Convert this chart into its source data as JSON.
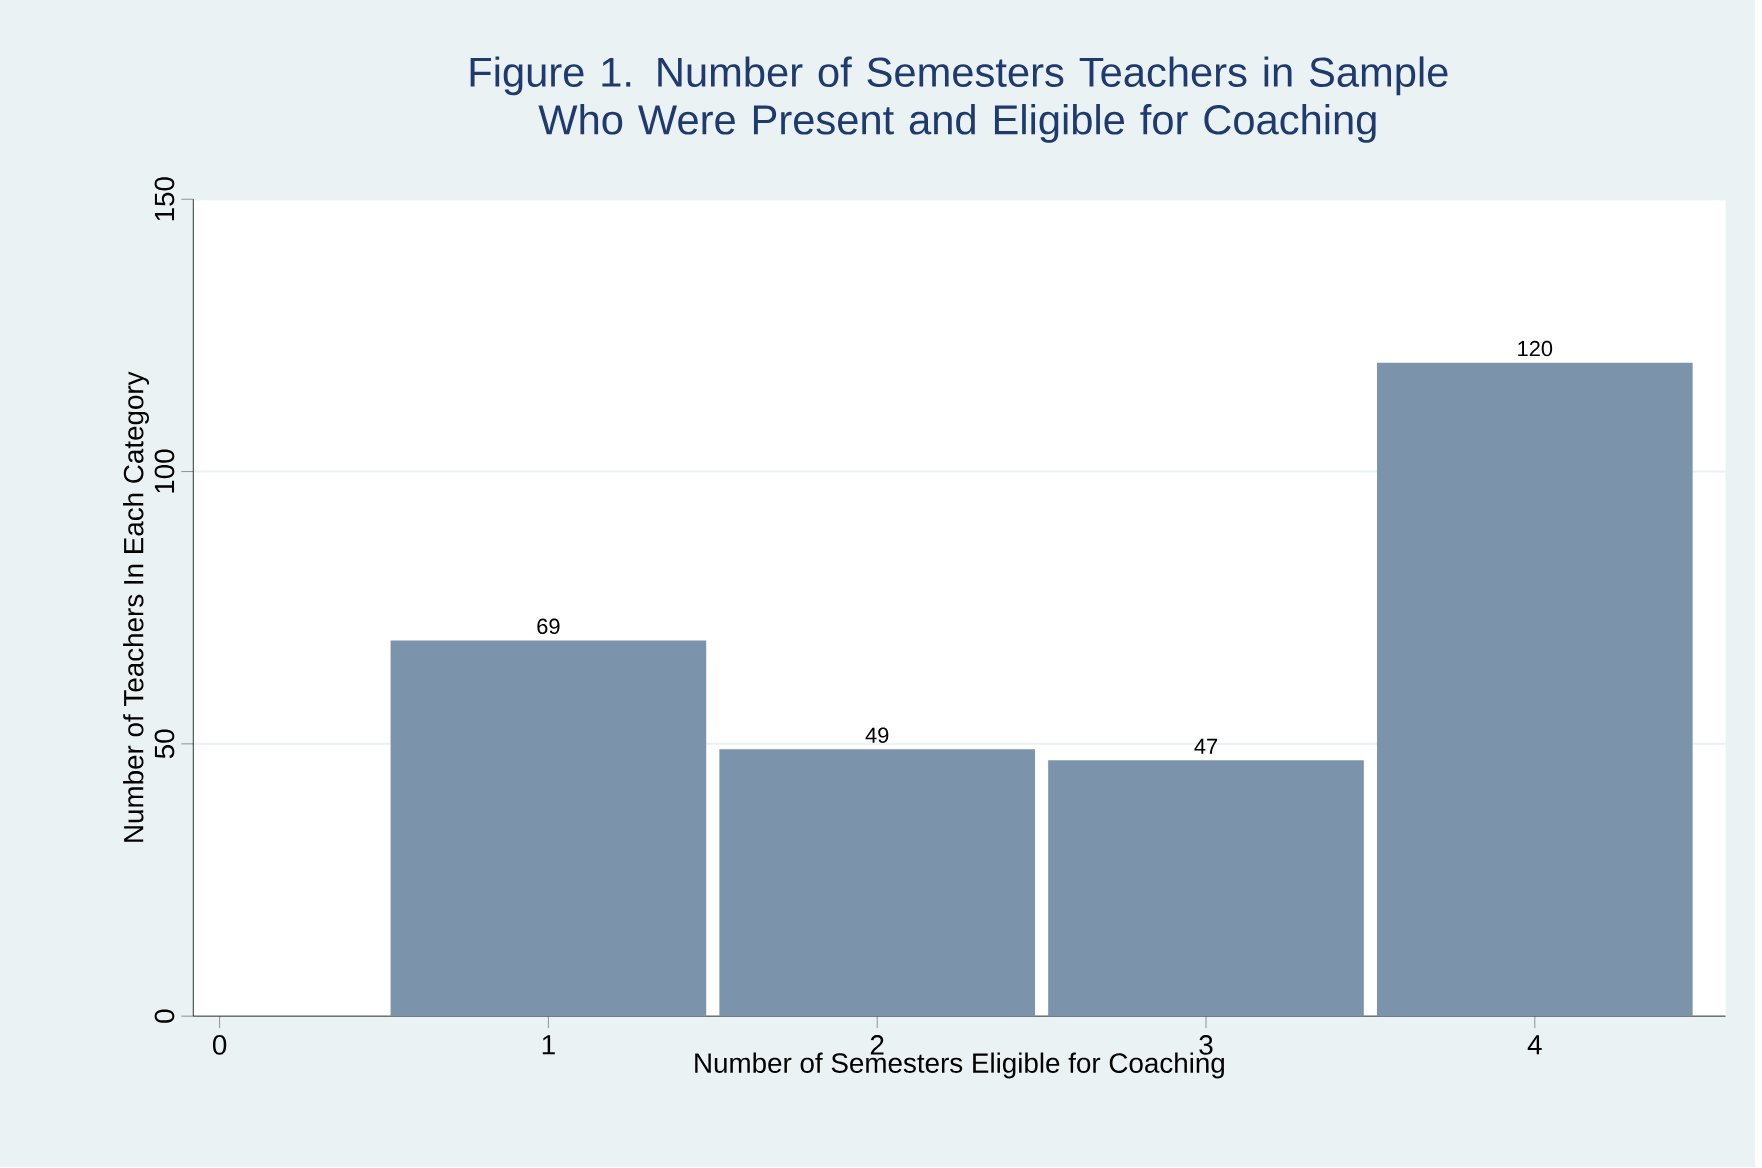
{
  "chart_data": {
    "type": "bar",
    "title": "Figure 1. Number of Semesters Teachers in Sample Who Were Present and Eligible for Coaching",
    "xlabel": "Number of Semesters Eligible for Coaching",
    "ylabel": "Number of Teachers In Each Category",
    "x": [
      1,
      2,
      3,
      4
    ],
    "values": [
      69,
      49,
      47,
      120
    ],
    "color": "#7b93ab",
    "xlim": [
      -0.08,
      4.58
    ],
    "xticks": [
      0,
      1,
      2,
      3,
      4
    ],
    "ylim": [
      0,
      150
    ],
    "yticks": [
      0,
      50,
      100,
      150
    ],
    "grid": "y",
    "data_labels": true
  }
}
